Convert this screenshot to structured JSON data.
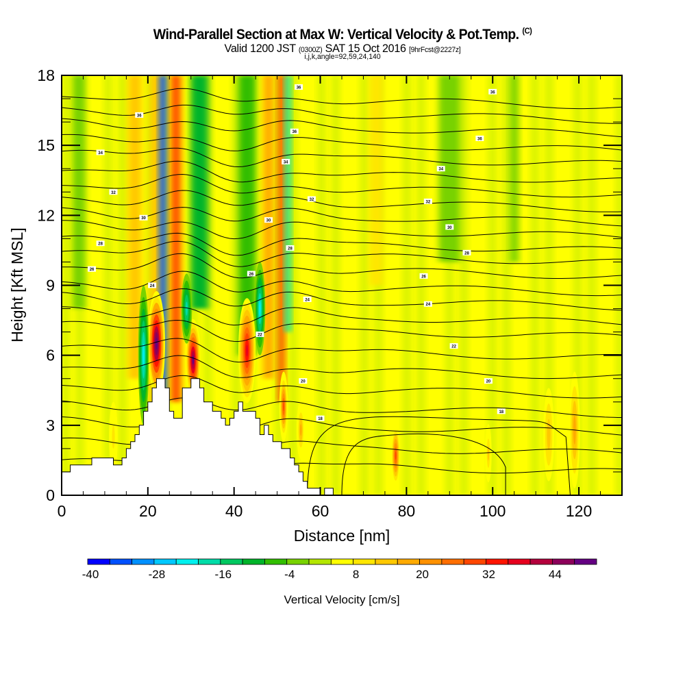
{
  "header": {
    "title": "Wind-Parallel Section at Max W: Vertical Velocity & Pot.Temp.",
    "copyright": "(C)",
    "valid_prefix": "Valid 1200 JST",
    "valid_utc": "(0300Z)",
    "valid_date": "SAT 15 Oct 2016",
    "forecast": "[9hrFcst@2227z]",
    "indices": "i,j,k,angle=92,59,24,140"
  },
  "chart_data": {
    "type": "heatmap",
    "title": "Wind-Parallel Section at Max W: Vertical Velocity & Pot.Temp.",
    "subtitle": "Valid 1200 JST (0300Z) SAT 15 Oct 2016 [9hrFcst@2227z]",
    "xlabel": "Distance [nm]",
    "ylabel": "Height [Kft MSL]",
    "xlim": [
      0,
      130
    ],
    "ylim": [
      0,
      18
    ],
    "xticks": [
      0,
      20,
      40,
      60,
      80,
      100,
      120
    ],
    "yticks": [
      0,
      3,
      6,
      9,
      12,
      15,
      18
    ],
    "x_minor_step": 5,
    "y_minor_step": 1,
    "colorbar": {
      "title": "Vertical Velocity [cm/s]",
      "min": -40,
      "step": 4,
      "tick_labels": [
        "-40",
        "-28",
        "-16",
        "-4",
        "8",
        "20",
        "32",
        "44"
      ],
      "tick_values": [
        -40,
        -28,
        -16,
        -4,
        8,
        20,
        32,
        44
      ],
      "colors": [
        "#0000ff",
        "#0050ff",
        "#0090ff",
        "#00c8ff",
        "#00f0ee",
        "#00dca8",
        "#00c860",
        "#00b42a",
        "#32be00",
        "#78d200",
        "#b4e600",
        "#ffff00",
        "#ffe600",
        "#ffc800",
        "#ffaa00",
        "#ff9100",
        "#ff6e00",
        "#ff4600",
        "#ff1400",
        "#e6001e",
        "#b4003c",
        "#8c005a",
        "#640082"
      ]
    },
    "background_value": 4,
    "features": [
      {
        "kind": "column",
        "x": 22,
        "y0": 0,
        "y1": 18,
        "value": 12,
        "width_nm": 3
      },
      {
        "kind": "column",
        "x": 23.5,
        "y0": 4,
        "y1": 18,
        "value": -36,
        "width_nm": 1.6
      },
      {
        "kind": "column",
        "x": 26.5,
        "y0": 4,
        "y1": 18,
        "value": 28,
        "width_nm": 2.2
      },
      {
        "kind": "column",
        "x": 48,
        "y0": 5,
        "y1": 18,
        "value": 16,
        "width_nm": 2.5
      },
      {
        "kind": "column",
        "x": 51,
        "y0": 4,
        "y1": 18,
        "value": 28,
        "width_nm": 1.5
      },
      {
        "kind": "column",
        "x": 52.5,
        "y0": 7,
        "y1": 18,
        "value": -20,
        "width_nm": 1.3
      },
      {
        "kind": "column",
        "x": 43,
        "y0": 6,
        "y1": 18,
        "value": -8,
        "width_nm": 4
      },
      {
        "kind": "column",
        "x": 32,
        "y0": 8,
        "y1": 18,
        "value": -10,
        "width_nm": 4
      },
      {
        "kind": "column",
        "x": 17,
        "y0": 5,
        "y1": 18,
        "value": 14,
        "width_nm": 3
      },
      {
        "kind": "column",
        "x": 73,
        "y0": 9,
        "y1": 18,
        "value": 10,
        "width_nm": 3
      },
      {
        "kind": "column",
        "x": 90,
        "y0": 10,
        "y1": 18,
        "value": -4,
        "width_nm": 5
      },
      {
        "kind": "column",
        "x": 105,
        "y0": 10,
        "y1": 18,
        "value": -4,
        "width_nm": 2
      },
      {
        "kind": "column",
        "x": 4,
        "y0": 8,
        "y1": 18,
        "value": -4,
        "width_nm": 3
      },
      {
        "kind": "cell",
        "x": 22,
        "y": 6.5,
        "value": 52,
        "width_nm": 4,
        "height_kft": 4.5
      },
      {
        "kind": "cell",
        "x": 30.5,
        "y": 5.8,
        "value": 48,
        "width_nm": 3.5,
        "height_kft": 3.5
      },
      {
        "kind": "cell",
        "x": 43,
        "y": 6.2,
        "value": 36,
        "width_nm": 4,
        "height_kft": 4.5
      },
      {
        "kind": "cell",
        "x": 19,
        "y": 6.0,
        "value": -24,
        "width_nm": 2.5,
        "height_kft": 6
      },
      {
        "kind": "cell",
        "x": 29,
        "y": 8.0,
        "value": -20,
        "width_nm": 2.5,
        "height_kft": 3
      },
      {
        "kind": "cell",
        "x": 46,
        "y": 8.0,
        "value": -24,
        "width_nm": 2.5,
        "height_kft": 4
      },
      {
        "kind": "cell",
        "x": 51.5,
        "y": 3.8,
        "value": 30,
        "width_nm": 2,
        "height_kft": 3
      },
      {
        "kind": "cell",
        "x": 55.5,
        "y": 2.8,
        "value": 18,
        "width_nm": 2,
        "height_kft": 2.5
      },
      {
        "kind": "cell",
        "x": 77.5,
        "y": 1.7,
        "value": 28,
        "width_nm": 2,
        "height_kft": 2.5
      },
      {
        "kind": "cell",
        "x": 99,
        "y": 1.8,
        "value": 14,
        "width_nm": 1.5,
        "height_kft": 2.5
      },
      {
        "kind": "cell",
        "x": 113,
        "y": 2.6,
        "value": 12,
        "width_nm": 2.5,
        "height_kft": 4
      },
      {
        "kind": "cell",
        "x": 119,
        "y": 2.8,
        "value": 16,
        "width_nm": 2.5,
        "height_kft": 5
      },
      {
        "kind": "cell",
        "x": 12,
        "y": 2.5,
        "value": 10,
        "width_nm": 2,
        "height_kft": 3
      }
    ],
    "terrain_profile": {
      "x": [
        0,
        0,
        2,
        2,
        7,
        7,
        12,
        12,
        14,
        14,
        15,
        15,
        16,
        16,
        17,
        17,
        18,
        18,
        19,
        19,
        20,
        20,
        21,
        21,
        22,
        22,
        24,
        24,
        25,
        25,
        26,
        26,
        28,
        28,
        30,
        30,
        32,
        32,
        33,
        33,
        35,
        35,
        37,
        37,
        38,
        38,
        39,
        39,
        40,
        40,
        41,
        41,
        42,
        42,
        45,
        45,
        46,
        46,
        47,
        47,
        48,
        48,
        49,
        49,
        51,
        51,
        53,
        53,
        54,
        54,
        55,
        55,
        56,
        56,
        57,
        57,
        58,
        58,
        59,
        59,
        60,
        60,
        61,
        61,
        63,
        63,
        64,
        64,
        130,
        130
      ],
      "y": [
        0,
        1.0,
        1.0,
        1.3,
        1.3,
        1.6,
        1.6,
        1.3,
        1.3,
        1.6,
        1.6,
        2.0,
        2.0,
        2.3,
        2.3,
        2.6,
        2.6,
        3.0,
        3.0,
        3.6,
        3.6,
        4.0,
        4.0,
        4.6,
        4.6,
        5.0,
        5.0,
        4.6,
        4.6,
        3.6,
        3.6,
        3.3,
        3.3,
        4.6,
        4.6,
        5.0,
        5.0,
        4.6,
        4.6,
        4.0,
        4.0,
        3.6,
        3.6,
        3.3,
        3.3,
        3.0,
        3.0,
        3.3,
        3.3,
        3.6,
        3.6,
        4.0,
        4.0,
        3.6,
        3.6,
        3.3,
        3.3,
        2.6,
        2.6,
        3.0,
        3.0,
        2.6,
        2.6,
        2.3,
        2.3,
        2.0,
        2.0,
        1.6,
        1.6,
        1.3,
        1.3,
        1.0,
        1.0,
        0.6,
        0.6,
        0.3,
        0.3,
        0.3,
        0.3,
        0.3,
        0.3,
        0.0,
        0.0,
        0.3,
        0.3,
        0.0,
        0.0,
        0.0
      ]
    },
    "theta_contours_kft": [
      1.5,
      2.3,
      3.2,
      4.0,
      4.8,
      5.6,
      6.4,
      7.3,
      7.9,
      8.6,
      9.2,
      9.9,
      10.5,
      11.0,
      11.6,
      12.2,
      12.8,
      13.4,
      14.0,
      14.7,
      15.3,
      16.0,
      16.6,
      17.2
    ],
    "contour_labels": [
      {
        "text": "36",
        "x": 55,
        "y": 17.5
      },
      {
        "text": "36",
        "x": 100,
        "y": 17.3
      },
      {
        "text": "36",
        "x": 18,
        "y": 16.3
      },
      {
        "text": "36",
        "x": 54,
        "y": 15.6
      },
      {
        "text": "36",
        "x": 97,
        "y": 15.3
      },
      {
        "text": "34",
        "x": 9,
        "y": 14.7
      },
      {
        "text": "34",
        "x": 52,
        "y": 14.3
      },
      {
        "text": "34",
        "x": 88,
        "y": 14.0
      },
      {
        "text": "32",
        "x": 12,
        "y": 13.0
      },
      {
        "text": "32",
        "x": 58,
        "y": 12.7
      },
      {
        "text": "32",
        "x": 85,
        "y": 12.6
      },
      {
        "text": "30",
        "x": 19,
        "y": 11.9
      },
      {
        "text": "30",
        "x": 48,
        "y": 11.8
      },
      {
        "text": "30",
        "x": 90,
        "y": 11.5
      },
      {
        "text": "28",
        "x": 9,
        "y": 10.8
      },
      {
        "text": "28",
        "x": 53,
        "y": 10.6
      },
      {
        "text": "28",
        "x": 94,
        "y": 10.4
      },
      {
        "text": "26",
        "x": 7,
        "y": 9.7
      },
      {
        "text": "26",
        "x": 44,
        "y": 9.5
      },
      {
        "text": "26",
        "x": 84,
        "y": 9.4
      },
      {
        "text": "24",
        "x": 21,
        "y": 9.0
      },
      {
        "text": "24",
        "x": 57,
        "y": 8.4
      },
      {
        "text": "24",
        "x": 85,
        "y": 8.2
      },
      {
        "text": "22",
        "x": 46,
        "y": 6.9
      },
      {
        "text": "22",
        "x": 91,
        "y": 6.4
      },
      {
        "text": "20",
        "x": 56,
        "y": 4.9
      },
      {
        "text": "20",
        "x": 99,
        "y": 4.9
      },
      {
        "text": "18",
        "x": 60,
        "y": 3.3
      },
      {
        "text": "18",
        "x": 102,
        "y": 3.6
      }
    ]
  }
}
